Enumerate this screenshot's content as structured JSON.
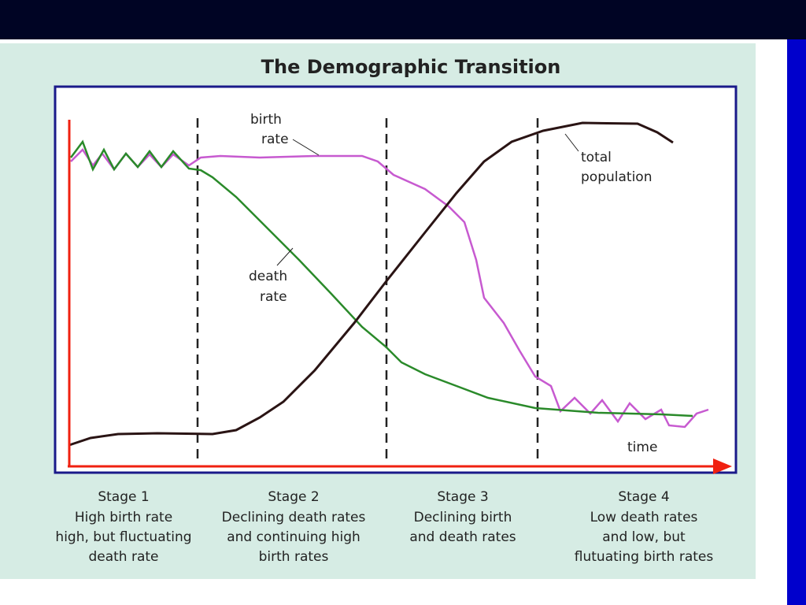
{
  "title": "The Demographic Transition",
  "curve_labels": {
    "birth_rate": [
      "birth",
      "rate"
    ],
    "death_rate": [
      "death",
      "rate"
    ],
    "total_population": [
      "total",
      "population"
    ],
    "x_axis": "time"
  },
  "stages": [
    {
      "title": "Stage 1",
      "lines": [
        "High birth rate",
        "high, but fluctuating",
        "death rate"
      ]
    },
    {
      "title": "Stage 2",
      "lines": [
        "Declining death rates",
        "and continuing high",
        "birth rates"
      ]
    },
    {
      "title": "Stage 3",
      "lines": [
        "Declining birth",
        "and death rates"
      ]
    },
    {
      "title": "Stage 4",
      "lines": [
        "Low death rates",
        "and low, but",
        "flutuating birth rates"
      ]
    }
  ]
}
